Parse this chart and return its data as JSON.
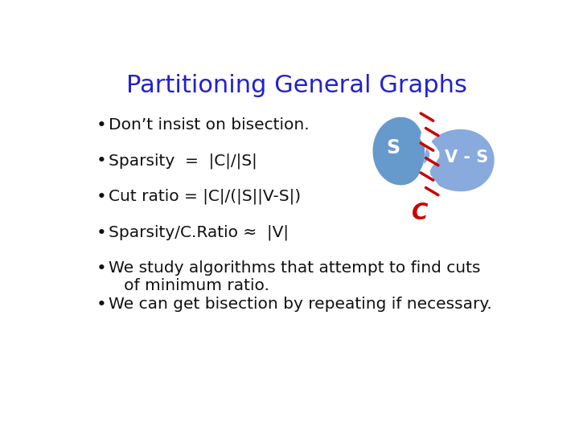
{
  "title": "Partitioning General Graphs",
  "title_color": "#2222cc",
  "title_fontsize": 22,
  "bg_color": "#ffffff",
  "bullet_items": [
    "Don’t insist on bisection.",
    "Sparsity  =  |C|/|S|",
    "Cut ratio = |C|/(|S||V-S|)",
    "Sparsity/C.Ratio ≈  |V|",
    "We study algorithms that attempt to find cuts\n   of minimum ratio.",
    "We can get bisection by repeating if necessary."
  ],
  "bullet_color": "#111111",
  "bullet_fontsize": 14.5,
  "diagram": {
    "left_blob_color": "#6699cc",
    "right_blob_color": "#88aadd",
    "s_label": "S",
    "vs_label": "V - S",
    "c_label": "C",
    "label_color": "#ffffff",
    "c_label_color": "#cc0000",
    "stitch_color": "#cc0000"
  }
}
